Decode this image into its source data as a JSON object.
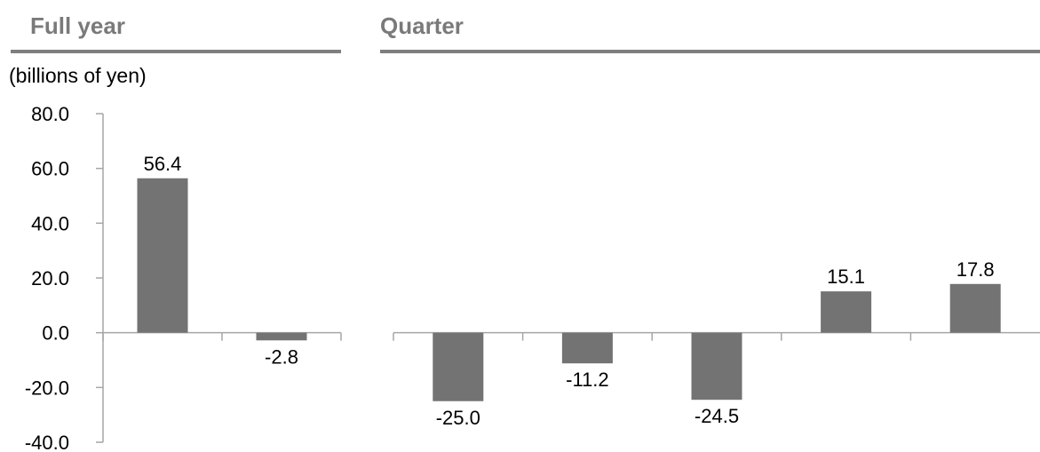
{
  "headers": {
    "full_year": "Full year",
    "quarter": "Quarter"
  },
  "unit_label": "(billions of yen)",
  "colors": {
    "bar": "#737373",
    "title": "#7a7a7a",
    "axis": "#a6a6a6",
    "rule": "#7f7f7f"
  },
  "chart_data": {
    "type": "bar",
    "title": "",
    "xlabel": "",
    "ylabel": "(billions of yen)",
    "ylim": [
      -40,
      80
    ],
    "yticks": [
      "80.0",
      "60.0",
      "40.0",
      "20.0",
      "0.0",
      "-20.0",
      "-40.0"
    ],
    "ytick_values": [
      80,
      60,
      40,
      20,
      0,
      -20,
      -40
    ],
    "grid": false,
    "legend": "none",
    "panels": [
      {
        "name": "Full year",
        "values": [
          56.4,
          -2.8
        ],
        "labels": [
          "56.4",
          "-2.8"
        ]
      },
      {
        "name": "Quarter",
        "values": [
          -25.0,
          -11.2,
          -24.5,
          15.1,
          17.8
        ],
        "labels": [
          "-25.0",
          "-11.2",
          "-24.5",
          "15.1",
          "17.8"
        ]
      }
    ]
  }
}
